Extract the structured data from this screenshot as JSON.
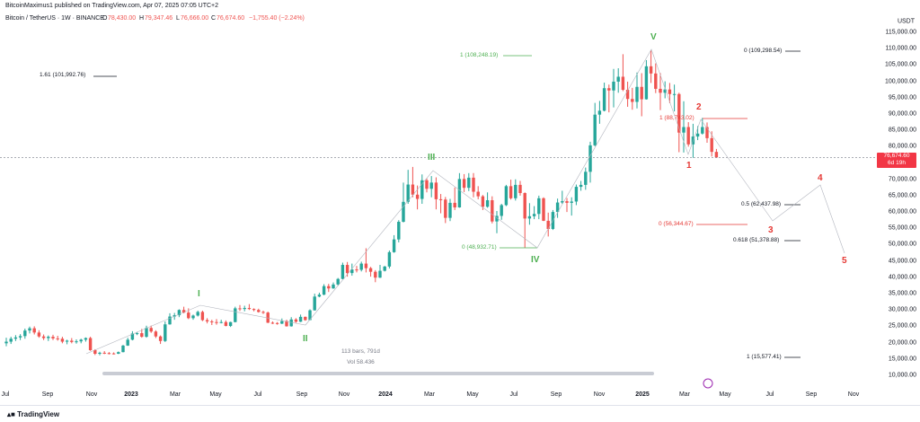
{
  "header": {
    "publisher_line": "BitcoinMaximus1 published on TradingView.com, Apr 07, 2025 07:05 UTC+2",
    "symbol": "Bitcoin / TetherUS · 1W · BINANCE",
    "ohlc": {
      "open_label": "O",
      "open": "78,430.00",
      "high_label": "H",
      "high": "79,347.46",
      "low_label": "L",
      "low": "76,666.00",
      "close_label": "C",
      "close": "76,674.60",
      "change": "−1,755.40 (−2.24%)"
    }
  },
  "price_axis": {
    "currency": "USDT",
    "ticks": [
      "115,000.00",
      "110,000.00",
      "105,000.00",
      "100,000.00",
      "95,000.00",
      "90,000.00",
      "85,000.00",
      "80,000.00",
      "75,000.00",
      "70,000.00",
      "65,000.00",
      "60,000.00",
      "55,000.00",
      "50,000.00",
      "45,000.00",
      "40,000.00",
      "35,000.00",
      "30,000.00",
      "25,000.00",
      "20,000.00",
      "15,000.00",
      "10,000.00"
    ],
    "last_price": "76,674.60",
    "countdown": "6d 19h"
  },
  "time_axis": {
    "ticks": [
      {
        "label": "Jul",
        "year": false
      },
      {
        "label": "Sep",
        "year": false
      },
      {
        "label": "Nov",
        "year": false
      },
      {
        "label": "2023",
        "year": true
      },
      {
        "label": "Mar",
        "year": false
      },
      {
        "label": "May",
        "year": false
      },
      {
        "label": "Jul",
        "year": false
      },
      {
        "label": "Sep",
        "year": false
      },
      {
        "label": "Nov",
        "year": false
      },
      {
        "label": "2024",
        "year": true
      },
      {
        "label": "Mar",
        "year": false
      },
      {
        "label": "May",
        "year": false
      },
      {
        "label": "Jul",
        "year": false
      },
      {
        "label": "Sep",
        "year": false
      },
      {
        "label": "Nov",
        "year": false
      },
      {
        "label": "2025",
        "year": true
      },
      {
        "label": "Mar",
        "year": false
      },
      {
        "label": "May",
        "year": false
      },
      {
        "label": "Jul",
        "year": false
      },
      {
        "label": "Sep",
        "year": false
      },
      {
        "label": "Nov",
        "year": false
      }
    ]
  },
  "annotations": {
    "fib_161": "1.61 (101,992.76)",
    "fib_1_top": "1 (108,248.19)",
    "fib_0_top": "0 (109,298.54)",
    "fib_1_mid": "1 (88,743.02)",
    "fib_05": "0.5 (62,437.98)",
    "fib_0_mid": "0 (56,344.67)",
    "fib_0618": "0.618 (51,378.88)",
    "fib_0_low": "0 (48,932.71)",
    "fib_1_low": "1 (15,577.41)",
    "bars_count": "113 bars, 791d",
    "volume": "Vol 58.436"
  },
  "waves": {
    "green": [
      "I",
      "II",
      "III",
      "IV",
      "V"
    ],
    "red": [
      "1",
      "2",
      "3",
      "4",
      "5"
    ]
  },
  "footer": {
    "logo_text": "TradingView"
  },
  "colors": {
    "up": "#26a69a",
    "down": "#ef5350",
    "green_label": "#4caf50",
    "red_label": "#e53935",
    "tag": "#f23645"
  },
  "chart_data": {
    "type": "candlestick",
    "x_unit": "weeks",
    "ohlc": [
      [
        19800,
        21500,
        18900,
        20300
      ],
      [
        20300,
        21800,
        19600,
        21200
      ],
      [
        21200,
        22300,
        20500,
        21600
      ],
      [
        21600,
        22600,
        20800,
        22000
      ],
      [
        22000,
        24300,
        21200,
        23700
      ],
      [
        23700,
        24900,
        22800,
        24400
      ],
      [
        24400,
        25000,
        22500,
        23100
      ],
      [
        23100,
        23800,
        21500,
        21900
      ],
      [
        21900,
        22500,
        20800,
        21400
      ],
      [
        21400,
        22200,
        20500,
        21800
      ],
      [
        21800,
        22400,
        20800,
        21300
      ],
      [
        21300,
        22100,
        20600,
        21200
      ],
      [
        21200,
        21800,
        19800,
        20300
      ],
      [
        20300,
        20900,
        19500,
        20600
      ],
      [
        20600,
        21400,
        19800,
        20200
      ],
      [
        20200,
        21000,
        19700,
        20400
      ],
      [
        20400,
        21200,
        19800,
        20900
      ],
      [
        20900,
        21600,
        20300,
        21400
      ],
      [
        21400,
        21800,
        17500,
        17700
      ],
      [
        17700,
        18000,
        16200,
        16600
      ],
      [
        16600,
        17200,
        16100,
        16900
      ],
      [
        16900,
        17400,
        16500,
        16800
      ],
      [
        16800,
        17100,
        16400,
        16700
      ],
      [
        16700,
        17000,
        16400,
        16600
      ],
      [
        16600,
        17300,
        16500,
        17100
      ],
      [
        17100,
        19300,
        17000,
        19100
      ],
      [
        19100,
        21500,
        19000,
        20900
      ],
      [
        20900,
        23500,
        20700,
        22800
      ],
      [
        22800,
        23300,
        22300,
        22900
      ],
      [
        22900,
        24200,
        21500,
        21800
      ],
      [
        21800,
        25200,
        21500,
        24500
      ],
      [
        24500,
        25200,
        23000,
        23400
      ],
      [
        23400,
        23800,
        21400,
        21900
      ],
      [
        21900,
        22200,
        19600,
        20500
      ],
      [
        20500,
        26500,
        20200,
        25600
      ],
      [
        25600,
        29000,
        25500,
        28000
      ],
      [
        28000,
        29100,
        27000,
        28400
      ],
      [
        28400,
        30200,
        27800,
        30000
      ],
      [
        30000,
        31000,
        29000,
        29200
      ],
      [
        29200,
        30500,
        27200,
        27500
      ],
      [
        27500,
        28600,
        27000,
        28300
      ],
      [
        28300,
        29800,
        28000,
        29400
      ],
      [
        29400,
        29800,
        26600,
        26900
      ],
      [
        26900,
        27500,
        25900,
        26500
      ],
      [
        26500,
        27000,
        25400,
        26300
      ],
      [
        26300,
        27200,
        25500,
        26100
      ],
      [
        26100,
        27000,
        25900,
        26300
      ],
      [
        26300,
        26800,
        25000,
        25100
      ],
      [
        25100,
        26400,
        24800,
        26300
      ],
      [
        26300,
        31000,
        26200,
        30500
      ],
      [
        30500,
        31500,
        29700,
        30300
      ],
      [
        30300,
        31300,
        29600,
        30600
      ],
      [
        30600,
        31800,
        30000,
        30300
      ],
      [
        30300,
        30500,
        29600,
        30000
      ],
      [
        30000,
        30400,
        29200,
        29400
      ],
      [
        29400,
        29800,
        28800,
        29200
      ],
      [
        29200,
        29500,
        26000,
        26100
      ],
      [
        26100,
        26500,
        25700,
        26000
      ],
      [
        26000,
        26300,
        25500,
        25800
      ],
      [
        25800,
        27400,
        25700,
        26600
      ],
      [
        26600,
        27000,
        24900,
        25000
      ],
      [
        25000,
        27800,
        24900,
        27100
      ],
      [
        27100,
        27500,
        26100,
        26400
      ],
      [
        26400,
        28600,
        26300,
        27900
      ],
      [
        27900,
        28000,
        26700,
        26900
      ],
      [
        26900,
        30200,
        26900,
        29900
      ],
      [
        29900,
        35000,
        29800,
        34100
      ],
      [
        34100,
        35300,
        33900,
        34700
      ],
      [
        34700,
        37900,
        34500,
        37300
      ],
      [
        37300,
        38000,
        35500,
        36600
      ],
      [
        36600,
        38400,
        36500,
        37800
      ],
      [
        37800,
        39800,
        37500,
        39500
      ],
      [
        39500,
        44500,
        39400,
        43800
      ],
      [
        43800,
        44700,
        40200,
        41300
      ],
      [
        41300,
        44200,
        40500,
        42400
      ],
      [
        42400,
        43500,
        41500,
        42300
      ],
      [
        42300,
        44800,
        41800,
        44200
      ],
      [
        44200,
        48900,
        41500,
        42800
      ],
      [
        42800,
        43200,
        40200,
        41700
      ],
      [
        41700,
        42200,
        38500,
        39900
      ],
      [
        39900,
        43800,
        39800,
        42000
      ],
      [
        42000,
        43500,
        41800,
        43300
      ],
      [
        43300,
        48200,
        42700,
        47700
      ],
      [
        47700,
        52900,
        47500,
        51600
      ],
      [
        51600,
        57500,
        50700,
        57000
      ],
      [
        57000,
        69000,
        56800,
        63100
      ],
      [
        63100,
        72900,
        62500,
        68400
      ],
      [
        68400,
        73800,
        64500,
        65300
      ],
      [
        65300,
        68100,
        60800,
        64000
      ],
      [
        64000,
        71500,
        62500,
        69700
      ],
      [
        69700,
        70300,
        66000,
        67100
      ],
      [
        67100,
        71000,
        64500,
        69000
      ],
      [
        69000,
        70600,
        60800,
        63900
      ],
      [
        63900,
        65500,
        59600,
        63800
      ],
      [
        63800,
        64600,
        56600,
        58200
      ],
      [
        58200,
        64000,
        57200,
        62800
      ],
      [
        62800,
        67500,
        60600,
        61400
      ],
      [
        61400,
        71900,
        61300,
        70100
      ],
      [
        70100,
        71600,
        66100,
        67400
      ],
      [
        67400,
        71900,
        66400,
        70500
      ],
      [
        70500,
        71900,
        64500,
        66200
      ],
      [
        66200,
        67900,
        63900,
        64800
      ],
      [
        64800,
        65200,
        60600,
        61600
      ],
      [
        61600,
        66000,
        61300,
        63600
      ],
      [
        63600,
        64800,
        56500,
        57100
      ],
      [
        57100,
        60300,
        53500,
        58800
      ],
      [
        58800,
        62500,
        57600,
        62100
      ],
      [
        62100,
        68300,
        61800,
        67900
      ],
      [
        67900,
        69900,
        63800,
        64200
      ],
      [
        64200,
        70000,
        63500,
        68300
      ],
      [
        68300,
        69500,
        65000,
        65800
      ],
      [
        65800,
        66000,
        49000,
        58000
      ],
      [
        58000,
        62700,
        56100,
        58700
      ],
      [
        58700,
        61800,
        57800,
        59400
      ],
      [
        59400,
        65000,
        57800,
        64200
      ],
      [
        64200,
        64500,
        57200,
        57300
      ],
      [
        57300,
        59800,
        52500,
        54800
      ],
      [
        54800,
        60600,
        54500,
        60000
      ],
      [
        60000,
        64100,
        58200,
        62900
      ],
      [
        62900,
        66500,
        62500,
        63300
      ],
      [
        63300,
        64300,
        60000,
        62800
      ],
      [
        62800,
        64500,
        58900,
        63200
      ],
      [
        63200,
        68400,
        62100,
        67700
      ],
      [
        67700,
        69500,
        66500,
        68300
      ],
      [
        68300,
        73600,
        66800,
        72300
      ],
      [
        72300,
        81500,
        69000,
        80400
      ],
      [
        80400,
        93400,
        80100,
        89800
      ],
      [
        89800,
        94000,
        87000,
        91000
      ],
      [
        91000,
        99600,
        90800,
        97900
      ],
      [
        97900,
        99000,
        90500,
        97200
      ],
      [
        97200,
        103800,
        92000,
        99900
      ],
      [
        99900,
        104000,
        96500,
        101400
      ],
      [
        101400,
        108300,
        97000,
        97400
      ],
      [
        97400,
        99900,
        92200,
        94600
      ],
      [
        94600,
        98000,
        91300,
        93700
      ],
      [
        93700,
        102700,
        91700,
        98300
      ],
      [
        98300,
        102500,
        89300,
        94500
      ],
      [
        94500,
        106500,
        94400,
        104600
      ],
      [
        104600,
        109400,
        99500,
        102400
      ],
      [
        102400,
        105500,
        96400,
        97700
      ],
      [
        97700,
        102500,
        91200,
        96500
      ],
      [
        96500,
        100000,
        94800,
        97500
      ],
      [
        97500,
        99500,
        93300,
        96100
      ],
      [
        96100,
        99000,
        90800,
        96100
      ],
      [
        96100,
        96500,
        78300,
        84300
      ],
      [
        84300,
        93900,
        78200,
        86000
      ],
      [
        86000,
        87500,
        80000,
        80700
      ],
      [
        80700,
        87000,
        76600,
        83100
      ],
      [
        83100,
        86300,
        82000,
        84000
      ],
      [
        84000,
        88800,
        83700,
        86000
      ],
      [
        86000,
        87400,
        81200,
        82600
      ],
      [
        82600,
        84700,
        77000,
        78400
      ],
      [
        78400,
        79300,
        76600,
        76700
      ]
    ],
    "fib_levels": [
      101992.76,
      108248.19,
      109298.54,
      88743.02,
      62437.98,
      56344.67,
      51378.88,
      48932.71,
      15577.41
    ],
    "last_price": 76674.6
  }
}
